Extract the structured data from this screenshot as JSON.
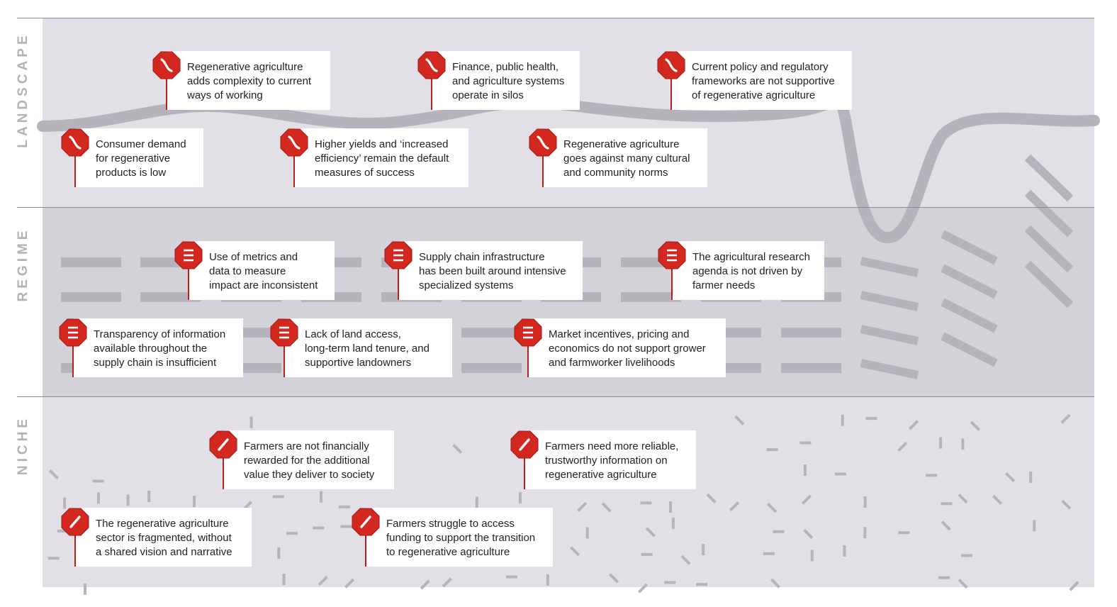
{
  "levels": {
    "landscape": "LANDSCAPE",
    "regime": "REGIME",
    "niche": "NICHE"
  },
  "colors": {
    "sign_red": "#d2281f",
    "landscape_band": "#e2e0e6",
    "regime_band": "#d4d2d9",
    "niche_band": "#e2e0e6",
    "decoration": "#b6b3bd"
  },
  "barriers": {
    "landscape": [
      {
        "text": "Regenerative agriculture\nadds complexity to current\nways of working",
        "icon": "wave-sign-icon"
      },
      {
        "text": "Finance, public health,\nand agriculture systems\noperate in silos",
        "icon": "wave-sign-icon"
      },
      {
        "text": "Current policy and regulatory\nframeworks are not supportive\nof regenerative agriculture",
        "icon": "wave-sign-icon"
      },
      {
        "text": "Consumer demand\nfor regenerative\nproducts is low",
        "icon": "wave-sign-icon"
      },
      {
        "text": "Higher yields and ‘increased\nefficiency’ remain the default\nmeasures of success",
        "icon": "wave-sign-icon"
      },
      {
        "text": "Regenerative agriculture\ngoes against many cultural\nand community norms",
        "icon": "wave-sign-icon"
      }
    ],
    "regime": [
      {
        "text": "Use of metrics and\ndata to measure\nimpact are inconsistent",
        "icon": "bars-sign-icon"
      },
      {
        "text": "Supply chain infrastructure\nhas been built around intensive\nspecialized systems",
        "icon": "bars-sign-icon"
      },
      {
        "text": "The agricultural research\nagenda is not driven by\nfarmer needs",
        "icon": "bars-sign-icon"
      },
      {
        "text": "Transparency of information\navailable throughout the\nsupply chain is insufficient",
        "icon": "bars-sign-icon"
      },
      {
        "text": "Lack of land access,\nlong-term land tenure, and\nsupportive landowners",
        "icon": "bars-sign-icon"
      },
      {
        "text": "Market incentives, pricing and\neconomics do not support grower\nand farmworker livelihoods",
        "icon": "bars-sign-icon"
      }
    ],
    "niche": [
      {
        "text": "Farmers are not financially\nrewarded for the additional\nvalue they deliver to society",
        "icon": "slash-sign-icon"
      },
      {
        "text": "Farmers need more reliable,\ntrustworthy information on\nregenerative agriculture",
        "icon": "slash-sign-icon"
      },
      {
        "text": "The regenerative agriculture\nsector is fragmented, without\na shared vision and narrative",
        "icon": "slash-sign-icon"
      },
      {
        "text": "Farmers struggle to access\nfunding to support the transition\nto regenerative agriculture",
        "icon": "slash-sign-icon"
      }
    ]
  }
}
